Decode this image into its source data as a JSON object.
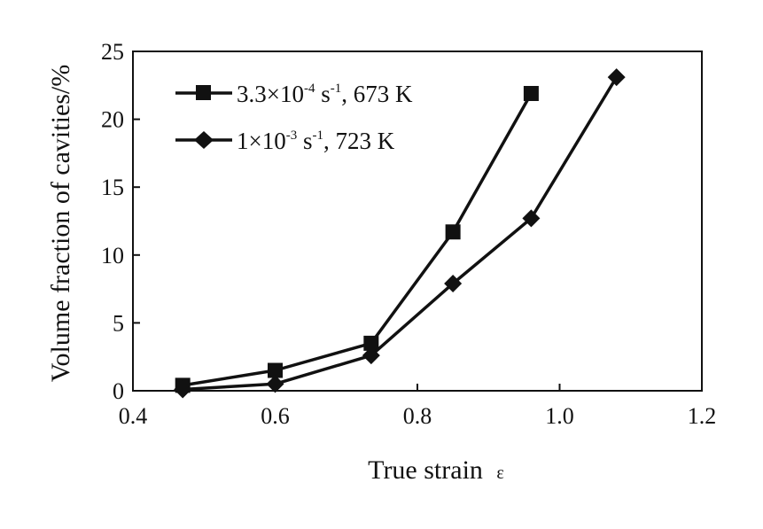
{
  "chart_data": {
    "type": "line",
    "xlabel": "True strain",
    "xlabel_symbol": "ε",
    "ylabel": "Volume fraction of cavities/%",
    "xlim": [
      0.4,
      1.2
    ],
    "ylim": [
      0,
      25
    ],
    "xticks": [
      "0.4",
      "0.6",
      "0.8",
      "1.0",
      "1.2"
    ],
    "yticks": [
      "0",
      "5",
      "10",
      "15",
      "20",
      "25"
    ],
    "x_tick_values": [
      0.4,
      0.6,
      0.8,
      1.0,
      1.2
    ],
    "y_tick_values": [
      0,
      5,
      10,
      15,
      20,
      25
    ],
    "grid": false,
    "legend_position": "top-left",
    "series": [
      {
        "marker": "square",
        "legend": {
          "a": "3.3",
          "mult": "×",
          "b": "10",
          "exp": "-4",
          "c": " s",
          "exp2": "-1",
          "d": ", 673 K"
        },
        "x": [
          0.47,
          0.6,
          0.735,
          0.85,
          0.96
        ],
        "y": [
          0.4,
          1.5,
          3.5,
          11.7,
          21.9
        ]
      },
      {
        "marker": "diamond",
        "legend": {
          "a": "1",
          "mult": "×",
          "b": "10",
          "exp": "-3",
          "c": " s",
          "exp2": "-1",
          "d": ", 723 K"
        },
        "x": [
          0.47,
          0.6,
          0.735,
          0.85,
          0.96,
          1.08
        ],
        "y": [
          0.1,
          0.5,
          2.6,
          7.9,
          12.7,
          23.1
        ]
      }
    ]
  }
}
